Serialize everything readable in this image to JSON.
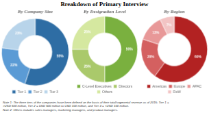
{
  "title": "Breakdown of Primary Interview",
  "annotations": [
    "Note 1: The three tiers of the companies have been defined on the basis of their total/segmental revenue as of 2015; Tier 1 =",
    ">USD 500 million, Tier 2 = USD 500 million to USD 100 million, and Tier 3 = <USD 100 million.",
    "Note 2: Others includes sales managers, marketing managers, and product managers."
  ],
  "chart_data": [
    {
      "type": "doughnut",
      "title": "By Company Size",
      "categories": [
        "Tier 1",
        "Tier 2",
        "Tier 3"
      ],
      "values": [
        55,
        22,
        23
      ],
      "value_labels": [
        "55%",
        "22%",
        "23%"
      ],
      "colors": [
        "#2e6da4",
        "#5b9bd5",
        "#b8d4ea"
      ],
      "data_labels": true,
      "legend": "bottom"
    },
    {
      "type": "doughnut",
      "title": "By Designation Level",
      "categories": [
        "C-Level Executives",
        "Directors",
        "Others"
      ],
      "values": [
        50,
        25,
        25
      ],
      "value_labels": [
        "50%",
        "25%",
        "25%"
      ],
      "colors": [
        "#7ab03f",
        "#aac96b",
        "#d5e8a0"
      ],
      "data_labels": true,
      "legend": "bottom"
    },
    {
      "type": "doughnut",
      "title": "By Region",
      "categories": [
        "Americas",
        "Europe",
        "APAC",
        "RoW"
      ],
      "values": [
        60,
        20,
        13,
        7
      ],
      "value_labels": [
        "60%",
        "20%",
        "13%",
        "7%"
      ],
      "colors": [
        "#b22222",
        "#d46060",
        "#e89898",
        "#f2c4c4"
      ],
      "data_labels": true,
      "legend": "bottom"
    }
  ]
}
